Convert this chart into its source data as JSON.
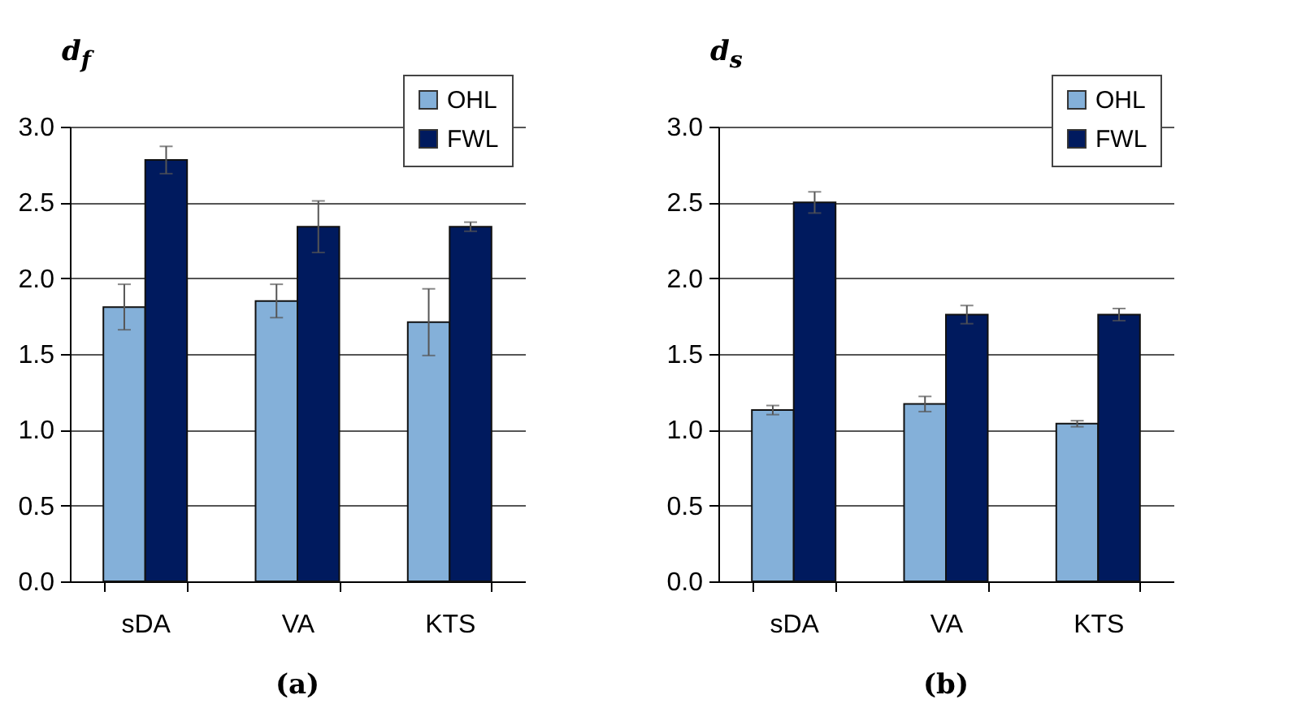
{
  "chart_data": [
    {
      "type": "bar",
      "ylabel": "d$_{f}$",
      "categories": [
        "sDA",
        "VA",
        "KTS"
      ],
      "series": [
        {
          "name": "OHL",
          "color": "#84b0d9",
          "values": [
            1.81,
            1.85,
            1.71
          ],
          "errors": [
            0.15,
            0.11,
            0.22
          ]
        },
        {
          "name": "FWL",
          "color": "#001a5e",
          "values": [
            2.78,
            2.34,
            2.34
          ],
          "errors": [
            0.09,
            0.17,
            0.03
          ]
        }
      ],
      "ylim": [
        0,
        3
      ],
      "yticks": [
        {
          "value": 0,
          "label": "0.0"
        },
        0.5,
        {
          "value": 1,
          "label": "1.0"
        },
        1.5,
        {
          "value": 2,
          "label": "2.0"
        },
        2.5,
        {
          "value": 3,
          "label": "3.0"
        }
      ],
      "grid": "y",
      "legend": "top right",
      "annotations": [
        "(a)"
      ]
    },
    {
      "type": "bar",
      "ylabel": "d$_{s}$",
      "categories": [
        "sDA",
        "VA",
        "KTS"
      ],
      "series": [
        {
          "name": "OHL",
          "color": "#84b0d9",
          "values": [
            1.13,
            1.17,
            1.04
          ],
          "errors": [
            0.03,
            0.05,
            0.02
          ]
        },
        {
          "name": "FWL",
          "color": "#001a5e",
          "values": [
            2.5,
            1.76,
            1.76
          ],
          "errors": [
            0.07,
            0.06,
            0.04
          ]
        }
      ],
      "ylim": [
        0,
        3
      ],
      "yticks": [
        {
          "value": 0,
          "label": "0.0"
        },
        0.5,
        {
          "value": 1,
          "label": "1.0"
        },
        1.5,
        {
          "value": 2,
          "label": "2.0"
        },
        2.5,
        {
          "value": 3,
          "label": "3.0"
        }
      ],
      "grid": "y",
      "legend": "top right",
      "annotations": [
        "(b)"
      ]
    }
  ]
}
